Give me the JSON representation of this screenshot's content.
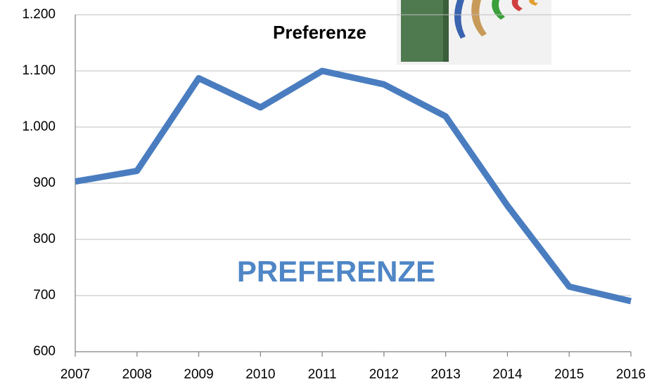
{
  "chart_data": {
    "type": "line",
    "title": "Preferenze",
    "x": [
      2007,
      2008,
      2009,
      2010,
      2011,
      2012,
      2013,
      2014,
      2015,
      2016
    ],
    "xlim": [
      2007,
      2016
    ],
    "xticks": [
      2007,
      2008,
      2009,
      2010,
      2011,
      2012,
      2013,
      2014,
      2015,
      2016
    ],
    "series": [
      {
        "name": "PREFERENZE",
        "color": "#4a7dc0",
        "values": [
          903,
          922,
          1087,
          1035,
          1100,
          1076,
          1019,
          860,
          716,
          690
        ]
      }
    ],
    "ylim": [
      600,
      1200
    ],
    "yticks": [
      600,
      700,
      800,
      900,
      {
        "value": 1000,
        "label": "1.000"
      },
      {
        "value": 1100,
        "label": "1.100"
      },
      {
        "value": 1200,
        "label": "1.200"
      }
    ],
    "grid": true
  }
}
